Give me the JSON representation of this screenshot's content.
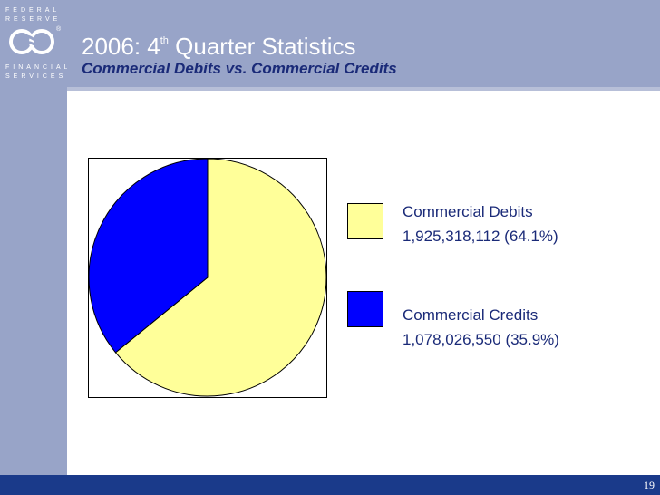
{
  "branding": {
    "line1": "FEDERAL",
    "line2": "RESERVE",
    "line3": "FINANCIAL",
    "line4": "SERVICES",
    "registered": "®"
  },
  "header": {
    "title_prefix": "2006: 4",
    "title_sup": "th",
    "title_suffix": " Quarter Statistics",
    "subtitle": "Commercial Debits vs. Commercial Credits"
  },
  "footer": {
    "page_number": "19"
  },
  "legend": {
    "items": [
      {
        "name": "Commercial Debits",
        "detail": "1,925,318,112  (64.1%)",
        "color": "#ffff99"
      },
      {
        "name": "Commercial Credits",
        "detail": "1,078,026,550  (35.9%)",
        "color": "#0000ff"
      }
    ]
  },
  "chart_data": {
    "type": "pie",
    "categories": [
      "Commercial Debits",
      "Commercial Credits"
    ],
    "values": [
      1925318112,
      1078026550
    ],
    "percentages": [
      64.1,
      35.9
    ],
    "colors": [
      "#ffff99",
      "#0000ff"
    ],
    "legend_position": "right"
  }
}
